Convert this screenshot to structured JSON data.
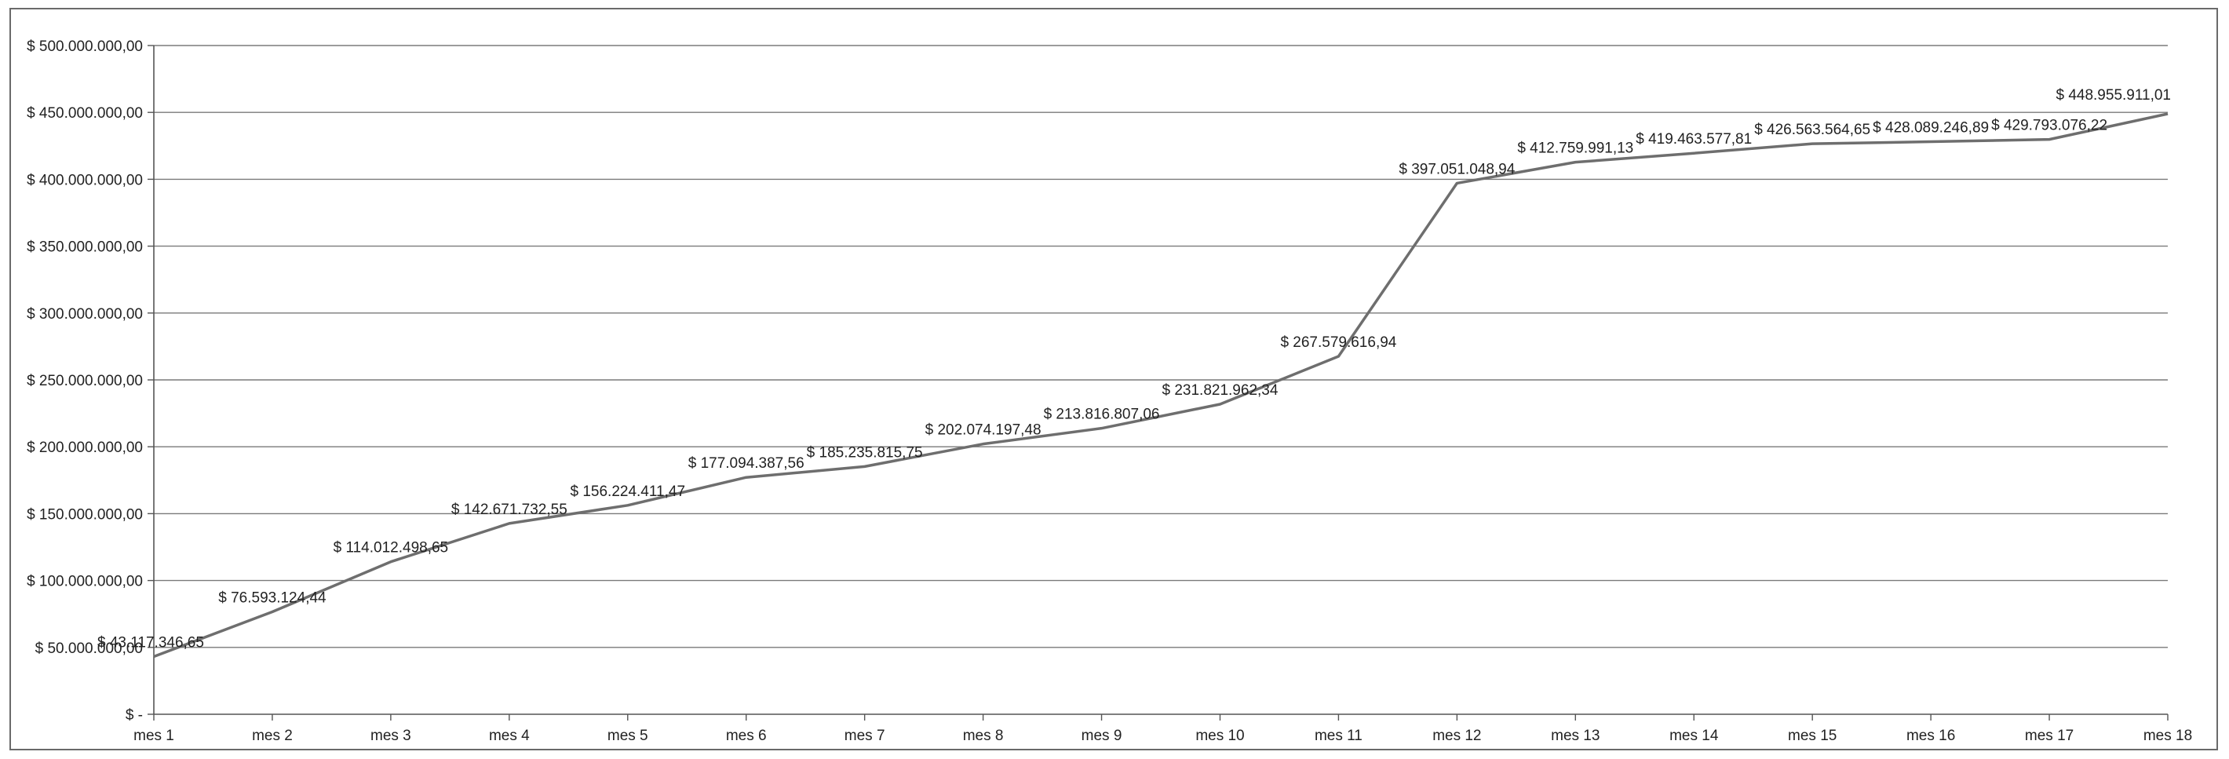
{
  "chart_data": {
    "type": "line",
    "title": "",
    "xlabel": "",
    "ylabel": "",
    "ylim": [
      0,
      500000000
    ],
    "grid": true,
    "legend": "none",
    "categories": [
      "mes 1",
      "mes 2",
      "mes 3",
      "mes 4",
      "mes 5",
      "mes 6",
      "mes 7",
      "mes 8",
      "mes 9",
      "mes 10",
      "mes 11",
      "mes 12",
      "mes 13",
      "mes 14",
      "mes 15",
      "mes 16",
      "mes 17",
      "mes 18"
    ],
    "y_ticks": [
      {
        "value": 0,
        "label": "$ -"
      },
      {
        "value": 50000000,
        "label": "$ 50.000.000,00"
      },
      {
        "value": 100000000,
        "label": "$ 100.000.000,00"
      },
      {
        "value": 150000000,
        "label": "$ 150.000.000,00"
      },
      {
        "value": 200000000,
        "label": "$ 200.000.000,00"
      },
      {
        "value": 250000000,
        "label": "$ 250.000.000,00"
      },
      {
        "value": 300000000,
        "label": "$ 300.000.000,00"
      },
      {
        "value": 350000000,
        "label": "$ 350.000.000,00"
      },
      {
        "value": 400000000,
        "label": "$ 400.000.000,00"
      },
      {
        "value": 450000000,
        "label": "$ 450.000.000,00"
      },
      {
        "value": 500000000,
        "label": "$ 500.000.000,00"
      }
    ],
    "values": [
      43117346.65,
      76593124.44,
      114012498.65,
      142671732.55,
      156224411.47,
      177094387.56,
      185235815.75,
      202074197.48,
      213816807.06,
      231821962.34,
      267579616.94,
      397051048.94,
      412759991.13,
      419463577.81,
      426563564.65,
      428089246.89,
      429793076.22,
      448955911.01
    ],
    "data_labels": [
      "$ 43.117.346,65",
      "$ 76.593.124,44",
      "$ 114.012.498,65",
      "$ 142.671.732,55",
      "$ 156.224.411,47",
      "$ 177.094.387,56",
      "$ 185.235.815,75",
      "$ 202.074.197,48",
      "$ 213.816.807,06",
      "$ 231.821.962,34",
      "$ 267.579.616,94",
      "$ 397.051.048,94",
      "$ 412.759.991,13",
      "$ 419.463.577,81",
      "$ 426.563.564,65",
      "$ 428.089.246,89",
      "$ 429.793.076,22",
      "$ 448.955.911,01"
    ],
    "colors": {
      "line": "#6e6e6e",
      "grid": "#7a7a7a",
      "axis": "#555555",
      "text": "#222222"
    }
  }
}
